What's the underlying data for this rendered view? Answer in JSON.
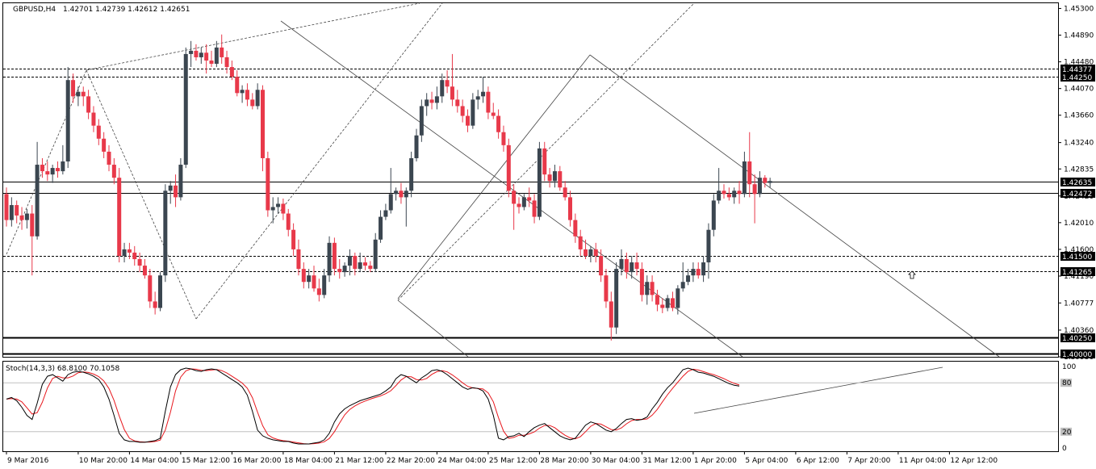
{
  "header": {
    "symbol_tf": "GBPUSD,H4",
    "ohlc": "1.42701 1.42739 1.42612 1.42651",
    "stoch_label": "Stoch(14,3,3) 68.8100 70.1058"
  },
  "colors": {
    "bull": "#3b4650",
    "bear": "#e8394a",
    "stoch_main": "#000000",
    "stoch_signal": "#e8181e",
    "trendline": "#444444"
  },
  "chart_data": {
    "type": "candlestick",
    "symbol": "GBPUSD",
    "timeframe": "H4",
    "y_ticks": [
      "1.45300",
      "1.44890",
      "1.44480",
      "1.44070",
      "1.43660",
      "1.43240",
      "1.42835",
      "1.42420",
      "1.42010",
      "1.41600",
      "1.41190",
      "1.40777",
      "1.40360",
      "1.39950"
    ],
    "ylim": [
      1.3995,
      1.4538
    ],
    "price_labels": [
      {
        "label": "1.44377",
        "value": 1.44377,
        "style": "dashed"
      },
      {
        "label": "1.44250",
        "value": 1.4425,
        "style": "dashed"
      },
      {
        "label": "1.42635",
        "value": 1.42635,
        "style": "solid"
      },
      {
        "label": "1.42472",
        "value": 1.42472,
        "style": "solid"
      },
      {
        "label": "1.41500",
        "value": 1.415,
        "style": "dashed"
      },
      {
        "label": "1.41265",
        "value": 1.41265,
        "style": "dashed"
      },
      {
        "label": "1.40250",
        "value": 1.4025,
        "style": "bold"
      },
      {
        "label": "1.40000",
        "value": 1.4,
        "style": "bold"
      }
    ],
    "x_labels": [
      {
        "label": "9 Mar 2016",
        "i": 0
      },
      {
        "label": "10 Mar 20:00",
        "i": 14
      },
      {
        "label": "14 Mar 04:00",
        "i": 24
      },
      {
        "label": "15 Mar 12:00",
        "i": 34
      },
      {
        "label": "16 Mar 20:00",
        "i": 44
      },
      {
        "label": "18 Mar 04:00",
        "i": 54
      },
      {
        "label": "21 Mar 12:00",
        "i": 64
      },
      {
        "label": "22 Mar 20:00",
        "i": 74
      },
      {
        "label": "24 Mar 04:00",
        "i": 84
      },
      {
        "label": "25 Mar 12:00",
        "i": 94
      },
      {
        "label": "28 Mar 20:00",
        "i": 104
      },
      {
        "label": "30 Mar 04:00",
        "i": 114
      },
      {
        "label": "31 Mar 12:00",
        "i": 124
      },
      {
        "label": "1 Apr 20:00",
        "i": 134
      },
      {
        "label": "5 Apr 04:00",
        "i": 144
      },
      {
        "label": "6 Apr 12:00",
        "i": 154
      },
      {
        "label": "7 Apr 20:00",
        "i": 164
      },
      {
        "label": "11 Apr 04:00",
        "i": 174
      },
      {
        "label": "12 Apr 12:00",
        "i": 184
      }
    ],
    "candles": [
      [
        1.4245,
        1.4255,
        1.4195,
        1.4205
      ],
      [
        1.4205,
        1.424,
        1.4195,
        1.4228
      ],
      [
        1.4228,
        1.4235,
        1.42,
        1.4212
      ],
      [
        1.4212,
        1.4225,
        1.419,
        1.4205
      ],
      [
        1.4205,
        1.4222,
        1.4192,
        1.4215
      ],
      [
        1.4215,
        1.4228,
        1.412,
        1.418
      ],
      [
        1.418,
        1.4325,
        1.4175,
        1.429
      ],
      [
        1.429,
        1.43,
        1.427,
        1.428
      ],
      [
        1.428,
        1.4295,
        1.4265,
        1.4275
      ],
      [
        1.4275,
        1.429,
        1.4262,
        1.4285
      ],
      [
        1.4285,
        1.4295,
        1.427,
        1.428
      ],
      [
        1.428,
        1.432,
        1.4275,
        1.4295
      ],
      [
        1.4295,
        1.444,
        1.4285,
        1.442
      ],
      [
        1.442,
        1.443,
        1.4385,
        1.4395
      ],
      [
        1.4395,
        1.441,
        1.438,
        1.4402
      ],
      [
        1.4402,
        1.441,
        1.438,
        1.4395
      ],
      [
        1.4395,
        1.4405,
        1.436,
        1.437
      ],
      [
        1.437,
        1.438,
        1.434,
        1.435
      ],
      [
        1.435,
        1.436,
        1.432,
        1.433
      ],
      [
        1.433,
        1.434,
        1.43,
        1.431
      ],
      [
        1.431,
        1.432,
        1.428,
        1.429
      ],
      [
        1.429,
        1.43,
        1.426,
        1.427
      ],
      [
        1.427,
        1.4285,
        1.414,
        1.415
      ],
      [
        1.415,
        1.417,
        1.414,
        1.416
      ],
      [
        1.416,
        1.417,
        1.4145,
        1.4155
      ],
      [
        1.4155,
        1.4165,
        1.4135,
        1.4145
      ],
      [
        1.4145,
        1.4155,
        1.4125,
        1.4135
      ],
      [
        1.4135,
        1.4145,
        1.4115,
        1.412
      ],
      [
        1.412,
        1.413,
        1.407,
        1.408
      ],
      [
        1.408,
        1.4095,
        1.406,
        1.407
      ],
      [
        1.407,
        1.4125,
        1.4065,
        1.412
      ],
      [
        1.412,
        1.426,
        1.411,
        1.425
      ],
      [
        1.425,
        1.4265,
        1.423,
        1.4258
      ],
      [
        1.4258,
        1.4275,
        1.4225,
        1.424
      ],
      [
        1.424,
        1.43,
        1.4235,
        1.429
      ],
      [
        1.429,
        1.447,
        1.4285,
        1.446
      ],
      [
        1.446,
        1.448,
        1.444,
        1.4465
      ],
      [
        1.4465,
        1.4475,
        1.445,
        1.4455
      ],
      [
        1.4455,
        1.447,
        1.4445,
        1.4462
      ],
      [
        1.4462,
        1.4475,
        1.443,
        1.445
      ],
      [
        1.445,
        1.4465,
        1.444,
        1.4445
      ],
      [
        1.4445,
        1.448,
        1.444,
        1.447
      ],
      [
        1.447,
        1.449,
        1.4445,
        1.4455
      ],
      [
        1.4455,
        1.4465,
        1.443,
        1.444
      ],
      [
        1.444,
        1.445,
        1.442,
        1.4425
      ],
      [
        1.4425,
        1.4435,
        1.4395,
        1.44
      ],
      [
        1.44,
        1.4412,
        1.4385,
        1.4405
      ],
      [
        1.4405,
        1.4415,
        1.438,
        1.439
      ],
      [
        1.439,
        1.44,
        1.4375,
        1.438
      ],
      [
        1.438,
        1.4415,
        1.4375,
        1.4405
      ],
      [
        1.4405,
        1.4412,
        1.428,
        1.43
      ],
      [
        1.43,
        1.431,
        1.421,
        1.422
      ],
      [
        1.422,
        1.424,
        1.42,
        1.4225
      ],
      [
        1.4225,
        1.424,
        1.4215,
        1.423
      ],
      [
        1.423,
        1.4238,
        1.4205,
        1.4215
      ],
      [
        1.4215,
        1.4222,
        1.418,
        1.419
      ],
      [
        1.419,
        1.42,
        1.415,
        1.416
      ],
      [
        1.416,
        1.4175,
        1.412,
        1.413
      ],
      [
        1.413,
        1.414,
        1.41,
        1.411
      ],
      [
        1.411,
        1.413,
        1.41,
        1.412
      ],
      [
        1.412,
        1.4135,
        1.4095,
        1.41
      ],
      [
        1.41,
        1.4115,
        1.408,
        1.409
      ],
      [
        1.409,
        1.413,
        1.4085,
        1.412
      ],
      [
        1.412,
        1.418,
        1.411,
        1.417
      ],
      [
        1.417,
        1.4178,
        1.412,
        1.413
      ],
      [
        1.413,
        1.4145,
        1.4115,
        1.4125
      ],
      [
        1.4125,
        1.414,
        1.4118,
        1.4135
      ],
      [
        1.4135,
        1.416,
        1.412,
        1.415
      ],
      [
        1.415,
        1.4155,
        1.412,
        1.413
      ],
      [
        1.413,
        1.4155,
        1.4125,
        1.414
      ],
      [
        1.414,
        1.4148,
        1.4128,
        1.4135
      ],
      [
        1.4135,
        1.4142,
        1.4125,
        1.413
      ],
      [
        1.413,
        1.4185,
        1.4125,
        1.4175
      ],
      [
        1.4175,
        1.422,
        1.417,
        1.421
      ],
      [
        1.421,
        1.423,
        1.4205,
        1.422
      ],
      [
        1.422,
        1.4285,
        1.4215,
        1.4245
      ],
      [
        1.4245,
        1.4255,
        1.4235,
        1.425
      ],
      [
        1.425,
        1.4262,
        1.423,
        1.424
      ],
      [
        1.424,
        1.4255,
        1.4195,
        1.425
      ],
      [
        1.425,
        1.431,
        1.424,
        1.43
      ],
      [
        1.43,
        1.4345,
        1.4295,
        1.4335
      ],
      [
        1.4335,
        1.439,
        1.4325,
        1.438
      ],
      [
        1.438,
        1.44,
        1.4365,
        1.439
      ],
      [
        1.439,
        1.4402,
        1.4375,
        1.4385
      ],
      [
        1.4385,
        1.441,
        1.4375,
        1.4395
      ],
      [
        1.4395,
        1.443,
        1.4385,
        1.442
      ],
      [
        1.442,
        1.4435,
        1.44,
        1.441
      ],
      [
        1.441,
        1.446,
        1.438,
        1.439
      ],
      [
        1.439,
        1.4405,
        1.437,
        1.438
      ],
      [
        1.438,
        1.439,
        1.4355,
        1.4365
      ],
      [
        1.4365,
        1.4375,
        1.434,
        1.435
      ],
      [
        1.435,
        1.44,
        1.4345,
        1.439
      ],
      [
        1.439,
        1.4405,
        1.4375,
        1.4395
      ],
      [
        1.4395,
        1.4425,
        1.4385,
        1.4402
      ],
      [
        1.4402,
        1.441,
        1.436,
        1.437
      ],
      [
        1.437,
        1.4385,
        1.436,
        1.4365
      ],
      [
        1.4365,
        1.4375,
        1.433,
        1.434
      ],
      [
        1.434,
        1.435,
        1.431,
        1.432
      ],
      [
        1.432,
        1.433,
        1.424,
        1.425
      ],
      [
        1.425,
        1.426,
        1.419,
        1.423
      ],
      [
        1.423,
        1.424,
        1.4215,
        1.4225
      ],
      [
        1.4225,
        1.4245,
        1.422,
        1.424
      ],
      [
        1.424,
        1.4255,
        1.4225,
        1.4235
      ],
      [
        1.4235,
        1.4245,
        1.42,
        1.421
      ],
      [
        1.421,
        1.4325,
        1.4205,
        1.4315
      ],
      [
        1.4315,
        1.4325,
        1.4265,
        1.4275
      ],
      [
        1.4275,
        1.4285,
        1.4255,
        1.4265
      ],
      [
        1.4265,
        1.429,
        1.4255,
        1.428
      ],
      [
        1.428,
        1.4288,
        1.425,
        1.4255
      ],
      [
        1.4255,
        1.4265,
        1.4235,
        1.424
      ],
      [
        1.424,
        1.425,
        1.4195,
        1.4205
      ],
      [
        1.4205,
        1.4215,
        1.417,
        1.418
      ],
      [
        1.418,
        1.419,
        1.415,
        1.416
      ],
      [
        1.416,
        1.4175,
        1.4145,
        1.415
      ],
      [
        1.415,
        1.4165,
        1.414,
        1.416
      ],
      [
        1.416,
        1.417,
        1.414,
        1.415
      ],
      [
        1.415,
        1.416,
        1.411,
        1.412
      ],
      [
        1.412,
        1.413,
        1.407,
        1.408
      ],
      [
        1.408,
        1.4095,
        1.402,
        1.404
      ],
      [
        1.404,
        1.414,
        1.403,
        1.413
      ],
      [
        1.413,
        1.416,
        1.412,
        1.4145
      ],
      [
        1.4145,
        1.4155,
        1.4115,
        1.4125
      ],
      [
        1.4125,
        1.415,
        1.4115,
        1.414
      ],
      [
        1.414,
        1.4155,
        1.412,
        1.413
      ],
      [
        1.413,
        1.414,
        1.408,
        1.409
      ],
      [
        1.409,
        1.412,
        1.4075,
        1.411
      ],
      [
        1.411,
        1.412,
        1.408,
        1.409
      ],
      [
        1.409,
        1.4098,
        1.4065,
        1.4075
      ],
      [
        1.4075,
        1.4085,
        1.4062,
        1.407
      ],
      [
        1.407,
        1.409,
        1.4065,
        1.4085
      ],
      [
        1.4085,
        1.4095,
        1.4065,
        1.407
      ],
      [
        1.407,
        1.4105,
        1.406,
        1.41
      ],
      [
        1.41,
        1.414,
        1.4095,
        1.411
      ],
      [
        1.411,
        1.413,
        1.4105,
        1.412
      ],
      [
        1.412,
        1.414,
        1.411,
        1.413
      ],
      [
        1.413,
        1.414,
        1.4115,
        1.412
      ],
      [
        1.412,
        1.415,
        1.411,
        1.414
      ],
      [
        1.414,
        1.42,
        1.4115,
        1.419
      ],
      [
        1.419,
        1.4245,
        1.418,
        1.4235
      ],
      [
        1.4235,
        1.4285,
        1.423,
        1.425
      ],
      [
        1.425,
        1.426,
        1.4238,
        1.4245
      ],
      [
        1.4245,
        1.4255,
        1.4235,
        1.424
      ],
      [
        1.424,
        1.4255,
        1.423,
        1.425
      ],
      [
        1.425,
        1.4265,
        1.423,
        1.4245
      ],
      [
        1.4245,
        1.431,
        1.424,
        1.4295
      ],
      [
        1.4295,
        1.434,
        1.424,
        1.426
      ],
      [
        1.426,
        1.4275,
        1.42,
        1.4245
      ],
      [
        1.4245,
        1.428,
        1.424,
        1.427
      ],
      [
        1.427,
        1.4274,
        1.4255,
        1.4262
      ],
      [
        1.4262,
        1.427,
        1.4255,
        1.4265
      ]
    ],
    "stoch": {
      "levels": [
        20,
        80
      ],
      "y_ticks": [
        "100",
        "80",
        "20",
        "0"
      ],
      "main": [
        60,
        62,
        58,
        50,
        40,
        35,
        55,
        78,
        88,
        90,
        86,
        82,
        90,
        93,
        94,
        93,
        91,
        88,
        84,
        75,
        60,
        40,
        18,
        10,
        8,
        8,
        7,
        7,
        8,
        9,
        12,
        45,
        75,
        90,
        96,
        98,
        97,
        95,
        94,
        96,
        97,
        96,
        92,
        88,
        84,
        80,
        75,
        65,
        45,
        22,
        15,
        12,
        10,
        9,
        8,
        8,
        6,
        5,
        5,
        5,
        6,
        7,
        10,
        18,
        32,
        42,
        48,
        52,
        55,
        58,
        60,
        62,
        64,
        66,
        70,
        75,
        85,
        90,
        88,
        84,
        80,
        86,
        90,
        95,
        96,
        94,
        90,
        85,
        80,
        75,
        72,
        74,
        73,
        70,
        60,
        40,
        12,
        10,
        14,
        15,
        18,
        14,
        20,
        25,
        28,
        30,
        25,
        20,
        15,
        12,
        10,
        12,
        20,
        28,
        32,
        30,
        26,
        22,
        20,
        24,
        30,
        35,
        36,
        34,
        35,
        38,
        48,
        56,
        66,
        74,
        80,
        88,
        96,
        98,
        96,
        93,
        92,
        90,
        88,
        85,
        82,
        79,
        77,
        76
      ]
    }
  }
}
